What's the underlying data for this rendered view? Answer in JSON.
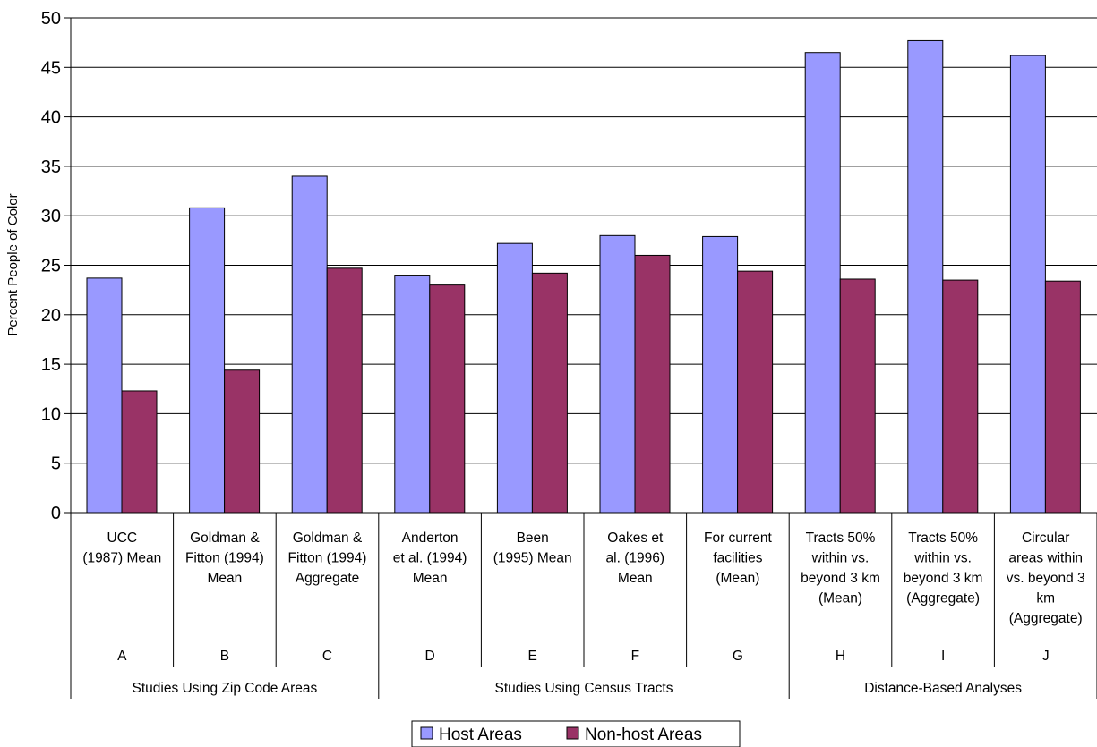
{
  "chart_data": {
    "type": "bar",
    "ylabel": "Percent People of Color",
    "ylim": [
      0,
      50
    ],
    "ytick_step": 5,
    "grid": true,
    "legend_position": "bottom",
    "categories": [
      {
        "lines": [
          "UCC",
          "(1987) Mean"
        ],
        "letter": "A"
      },
      {
        "lines": [
          "Goldman &",
          "Fitton (1994)",
          "Mean"
        ],
        "letter": "B"
      },
      {
        "lines": [
          "Goldman &",
          "Fitton (1994)",
          "Aggregate"
        ],
        "letter": "C"
      },
      {
        "lines": [
          "Anderton",
          "et al. (1994)",
          "Mean"
        ],
        "letter": "D"
      },
      {
        "lines": [
          "Been",
          "(1995) Mean"
        ],
        "letter": "E"
      },
      {
        "lines": [
          "Oakes et",
          "al. (1996)",
          "Mean"
        ],
        "letter": "F"
      },
      {
        "lines": [
          "For current",
          "facilities",
          "(Mean)"
        ],
        "letter": "G"
      },
      {
        "lines": [
          "Tracts 50%",
          "within vs.",
          "beyond 3 km",
          "(Mean)"
        ],
        "letter": "H"
      },
      {
        "lines": [
          "Tracts 50%",
          "within vs.",
          "beyond 3 km",
          "(Aggregate)"
        ],
        "letter": "I"
      },
      {
        "lines": [
          "Circular",
          "areas within",
          "vs. beyond 3",
          "km",
          "(Aggregate)"
        ],
        "letter": "J"
      }
    ],
    "groups": [
      {
        "label": "Studies Using Zip Code Areas",
        "start": 0,
        "end": 2
      },
      {
        "label": "Studies Using Census Tracts",
        "start": 3,
        "end": 6
      },
      {
        "label": "Distance-Based Analyses",
        "start": 7,
        "end": 9
      }
    ],
    "series": [
      {
        "name": "Host Areas",
        "color": "#9999ff",
        "values": [
          23.7,
          30.8,
          34.0,
          24.0,
          27.2,
          28.0,
          27.9,
          46.5,
          47.7,
          46.2
        ]
      },
      {
        "name": "Non-host Areas",
        "color": "#993366",
        "values": [
          12.3,
          14.4,
          24.7,
          23.0,
          24.2,
          26.0,
          24.4,
          23.6,
          23.5,
          23.4
        ]
      }
    ]
  }
}
